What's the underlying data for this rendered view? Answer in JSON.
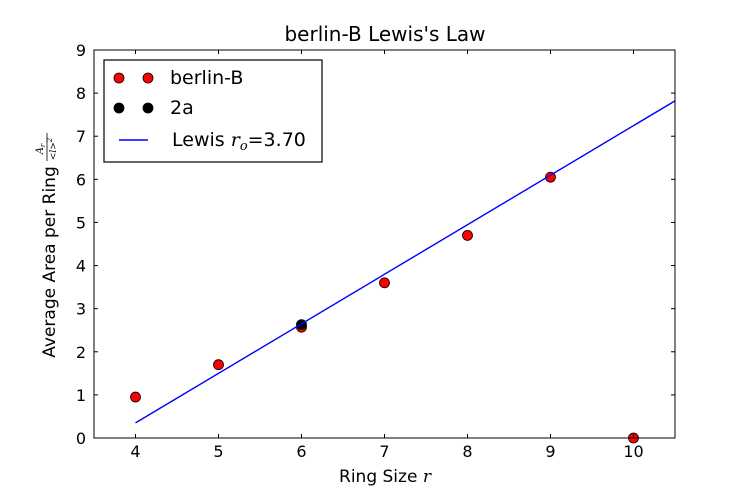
{
  "chart_data": {
    "type": "scatter",
    "title": "berlin-B Lewis's Law",
    "xlabel": "Ring Size",
    "xlabel_var": "r",
    "ylabel": "Average Area per Ring",
    "ylabel_formula": {
      "numerator": "A",
      "numerator_sub": "r",
      "denominator": "<l>",
      "denominator_sup": "2"
    },
    "xlim": [
      3.5,
      10.5
    ],
    "ylim": [
      0,
      9
    ],
    "xticks": [
      4,
      5,
      6,
      7,
      8,
      9,
      10
    ],
    "yticks": [
      0,
      1,
      2,
      3,
      4,
      5,
      6,
      7,
      8,
      9
    ],
    "grid": false,
    "legend_position": "top-left",
    "series": [
      {
        "name": "berlin-B",
        "kind": "markers",
        "color": "#ff0000",
        "x": [
          4,
          5,
          6,
          7,
          8,
          9,
          10
        ],
        "y": [
          0.95,
          1.7,
          2.57,
          3.6,
          4.7,
          6.05,
          0.0
        ]
      },
      {
        "name": "2a",
        "kind": "markers",
        "color": "#000000",
        "x": [
          6
        ],
        "y": [
          2.63
        ]
      },
      {
        "name": "Lewis",
        "name_var": "r",
        "name_sub": "o",
        "name_value": "=3.70",
        "kind": "line",
        "color": "#0000ff",
        "x": [
          4,
          10.5
        ],
        "y": [
          0.35,
          7.82
        ]
      }
    ]
  }
}
